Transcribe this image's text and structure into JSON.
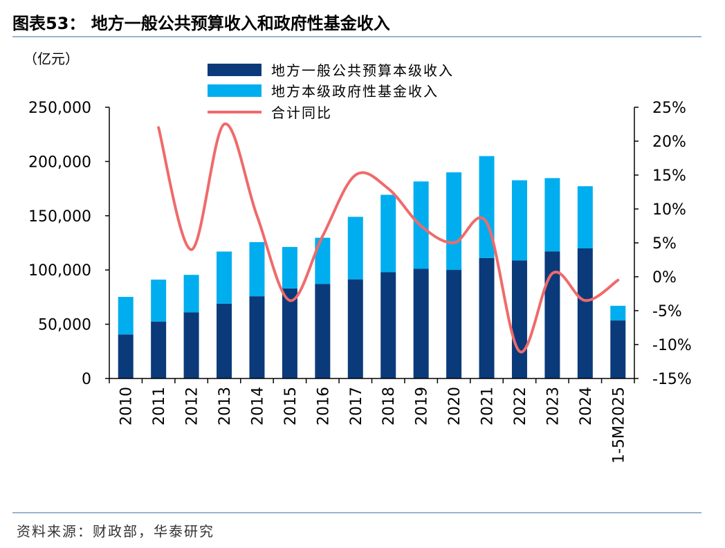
{
  "title": "图表53：  地方一般公共预算收入和政府性基金收入",
  "source": "资料来源：财政部，华泰研究",
  "chart_data": {
    "type": "bar",
    "stacked": true,
    "unit_label": "（亿元）",
    "categories": [
      "2010",
      "2011",
      "2012",
      "2013",
      "2014",
      "2015",
      "2016",
      "2017",
      "2018",
      "2019",
      "2020",
      "2021",
      "2022",
      "2023",
      "2024",
      "1-5M2025"
    ],
    "series": [
      {
        "name": "地方一般公共预算本级收入",
        "type": "bar",
        "axis": "left",
        "color": "#0b3a7a",
        "values": [
          40600,
          52500,
          61000,
          69000,
          75800,
          83000,
          87200,
          91400,
          97900,
          101100,
          100100,
          111100,
          108800,
          117200,
          119900,
          53500
        ]
      },
      {
        "name": "地方本级政府性基金收入",
        "type": "bar",
        "axis": "left",
        "color": "#00aeef",
        "values": [
          34600,
          38600,
          34500,
          48000,
          49900,
          38200,
          42500,
          57600,
          71400,
          80500,
          89900,
          93900,
          73900,
          67500,
          57300,
          13500
        ]
      },
      {
        "name": "合计同比",
        "type": "line",
        "axis": "right",
        "color": "#f06a6a",
        "values": [
          null,
          22.0,
          4.0,
          22.5,
          9.0,
          -3.5,
          6.0,
          15.0,
          13.0,
          7.5,
          5.0,
          8.0,
          -11.0,
          0.5,
          -3.5,
          -0.5
        ]
      }
    ],
    "yleft": {
      "min": 0,
      "max": 250000,
      "ticks": [
        "0",
        "50,000",
        "100,000",
        "150,000",
        "200,000",
        "250,000"
      ]
    },
    "yright": {
      "min": -15,
      "max": 25,
      "ticks": [
        "-15%",
        "-10%",
        "-5%",
        "0%",
        "5%",
        "10%",
        "15%",
        "20%",
        "25%"
      ]
    },
    "grid": false,
    "legend_position": "top-center"
  }
}
